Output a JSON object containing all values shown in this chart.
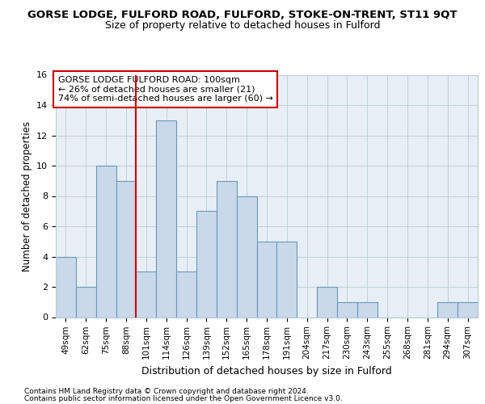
{
  "title1": "GORSE LODGE, FULFORD ROAD, FULFORD, STOKE-ON-TRENT, ST11 9QT",
  "title2": "Size of property relative to detached houses in Fulford",
  "xlabel": "Distribution of detached houses by size in Fulford",
  "ylabel": "Number of detached properties",
  "categories": [
    "49sqm",
    "62sqm",
    "75sqm",
    "88sqm",
    "101sqm",
    "114sqm",
    "126sqm",
    "139sqm",
    "152sqm",
    "165sqm",
    "178sqm",
    "191sqm",
    "204sqm",
    "217sqm",
    "230sqm",
    "243sqm",
    "255sqm",
    "268sqm",
    "281sqm",
    "294sqm",
    "307sqm"
  ],
  "values": [
    4,
    2,
    10,
    9,
    3,
    13,
    3,
    7,
    9,
    8,
    5,
    5,
    0,
    2,
    1,
    1,
    0,
    0,
    0,
    1,
    1
  ],
  "bar_color": "#c9d9ea",
  "bar_edge_color": "#6699bb",
  "highlight_index": 4,
  "highlight_line_color": "#cc0000",
  "annotation_box_text": "GORSE LODGE FULFORD ROAD: 100sqm\n← 26% of detached houses are smaller (21)\n74% of semi-detached houses are larger (60) →",
  "annotation_box_color": "#ffffff",
  "annotation_box_edge_color": "#cc0000",
  "ylim": [
    0,
    16
  ],
  "yticks": [
    0,
    2,
    4,
    6,
    8,
    10,
    12,
    14,
    16
  ],
  "footer1": "Contains HM Land Registry data © Crown copyright and database right 2024.",
  "footer2": "Contains public sector information licensed under the Open Government Licence v3.0.",
  "bg_color": "#ffffff",
  "plot_bg_color": "#e8eef5",
  "grid_color": "#b8ccd8",
  "title1_fontsize": 9.5,
  "title2_fontsize": 9,
  "tick_fontsize": 7.5,
  "ylabel_fontsize": 8.5,
  "xlabel_fontsize": 9,
  "footer_fontsize": 6.5,
  "annotation_fontsize": 8
}
